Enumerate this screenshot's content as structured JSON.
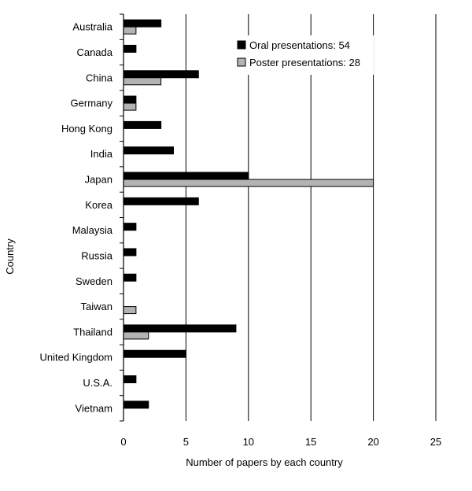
{
  "chart_data": {
    "type": "bar",
    "orientation": "horizontal",
    "categories": [
      "Australia",
      "Canada",
      "China",
      "Germany",
      "Hong Kong",
      "India",
      "Japan",
      "Korea",
      "Malaysia",
      "Russia",
      "Sweden",
      "Taiwan",
      "Thailand",
      "United Kingdom",
      "U.S.A.",
      "Vietnam"
    ],
    "series": [
      {
        "name": "Oral presentations: 54",
        "color": "#000000",
        "values": [
          3,
          1,
          6,
          1,
          3,
          4,
          10,
          6,
          1,
          1,
          1,
          0,
          9,
          5,
          1,
          2
        ]
      },
      {
        "name": "Poster presentations: 28",
        "color": "#b3b3b3",
        "values": [
          1,
          0,
          3,
          1,
          0,
          0,
          20,
          0,
          0,
          0,
          0,
          1,
          2,
          0,
          0,
          0
        ]
      }
    ],
    "xlabel": "Number of papers by each country",
    "ylabel": "Country",
    "xlim": [
      0,
      25
    ],
    "xticks": [
      "0",
      "5",
      "10",
      "15",
      "20",
      "25"
    ],
    "grid": "vertical",
    "legend_position": "top-right"
  }
}
